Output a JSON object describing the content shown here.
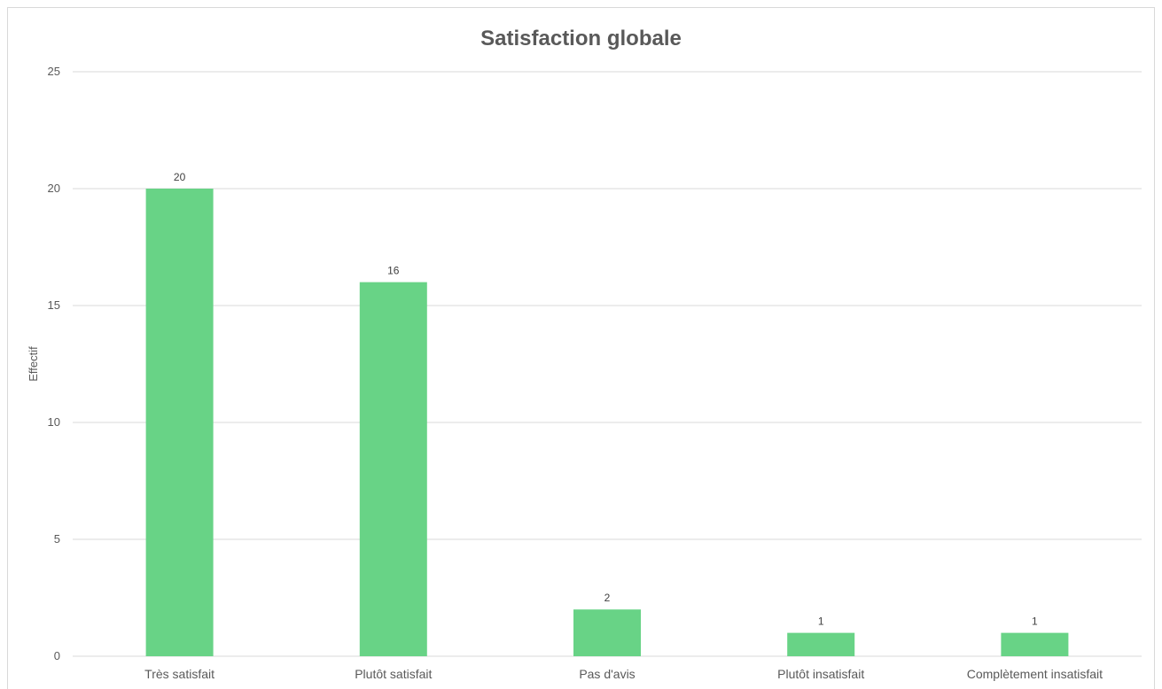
{
  "chart_data": {
    "type": "bar",
    "title": "Satisfaction globale",
    "xlabel": "",
    "ylabel": "Effectif",
    "categories": [
      "Très satisfait",
      "Plutôt satisfait",
      "Pas d'avis",
      "Plutôt insatisfait",
      "Complètement insatisfait"
    ],
    "values": [
      20,
      16,
      2,
      1,
      1
    ],
    "ylim": [
      0,
      25
    ],
    "yticks": [
      0,
      5,
      10,
      15,
      20,
      25
    ],
    "grid": true,
    "legend": "none",
    "bar_color": "#68d386"
  }
}
